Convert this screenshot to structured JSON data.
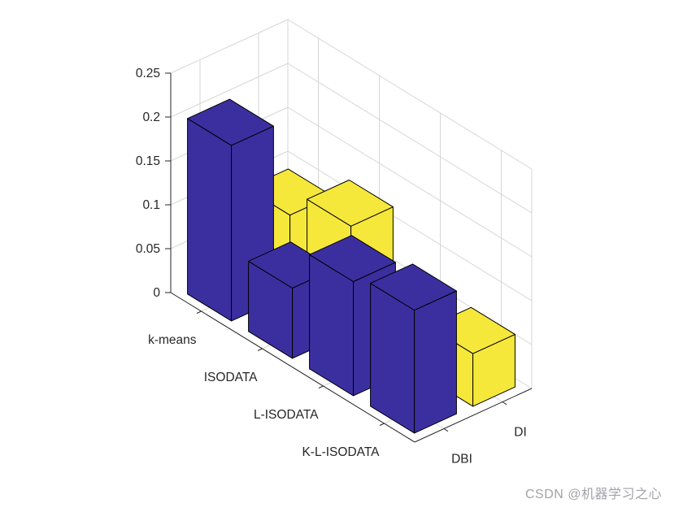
{
  "watermark": {
    "text": "CSDN @机器学习之心"
  },
  "colors": {
    "background": "#ffffff",
    "grid": "#d6d6d6",
    "axis": "#262626",
    "bar_edge": "#000000",
    "series_blue": "#3b2fa0",
    "series_yellow": "#f6e83b"
  },
  "chart_data": {
    "type": "bar3d",
    "title": "",
    "xlabel": "",
    "ylabel": "",
    "zlabel": "",
    "grid": true,
    "view": "matlab-default-3d",
    "categories": [
      "k-means",
      "ISODATA",
      "L-ISODATA",
      "K-L-ISODATA"
    ],
    "series": [
      {
        "name": "DBI",
        "color": "#3b2fa0",
        "values": [
          0.2,
          0.08,
          0.13,
          0.14
        ]
      },
      {
        "name": "DI",
        "color": "#f6e83b",
        "values": [
          0.09,
          0.12,
          0.03,
          0.06
        ]
      }
    ],
    "zlim": [
      0,
      0.25
    ],
    "zticks": [
      0,
      0.05,
      0.1,
      0.15,
      0.2,
      0.25
    ]
  }
}
